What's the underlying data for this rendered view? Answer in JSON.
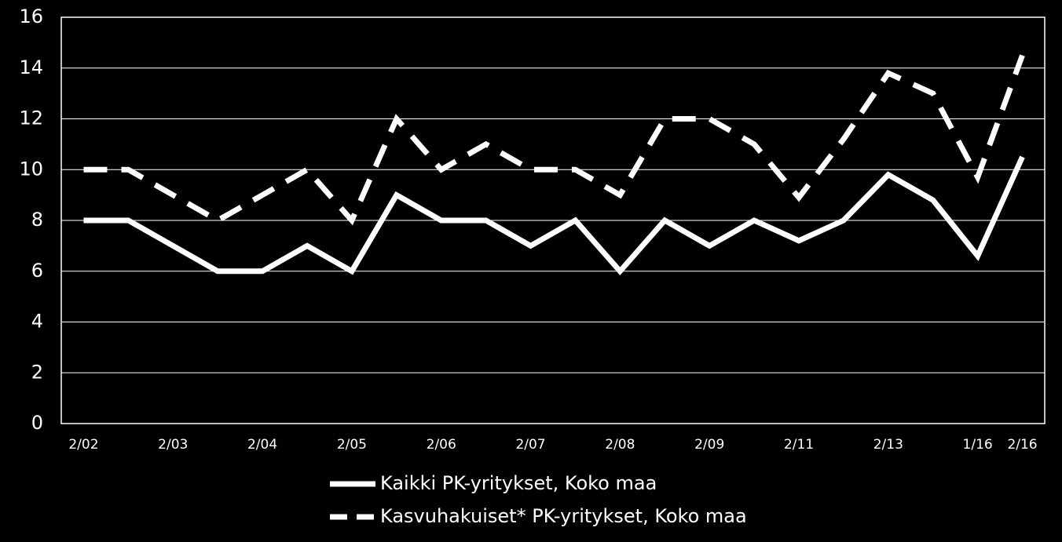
{
  "chart_data": {
    "type": "line",
    "categories": [
      "2/02",
      null,
      "2/03",
      null,
      "2/04",
      null,
      "2/05",
      null,
      "2/06",
      null,
      "2/07",
      null,
      "2/08",
      null,
      "2/09",
      null,
      "2/11",
      null,
      "2/13",
      null,
      "1/16",
      "2/16"
    ],
    "series": [
      {
        "name": "Kaikki PK-yritykset, Koko maa",
        "color": "#ffffff",
        "dash": "solid",
        "values": [
          8,
          8,
          7,
          6,
          6,
          7,
          6,
          9,
          8,
          8,
          7,
          8,
          6,
          8,
          7,
          8,
          7.2,
          8,
          9.8,
          8.8,
          6.6,
          10.5
        ]
      },
      {
        "name": "Kasvuhakuiset* PK-yritykset, Koko maa",
        "color": "#ffffff",
        "dash": "dashed",
        "values": [
          10,
          10,
          9,
          8,
          9,
          10,
          8,
          12,
          10,
          11,
          10,
          10,
          9,
          12,
          12,
          11,
          8.9,
          11.2,
          13.8,
          13,
          9.7,
          14.5
        ]
      }
    ],
    "ylim": [
      0,
      16
    ],
    "yticks": [
      0,
      2,
      4,
      6,
      8,
      10,
      12,
      14,
      16
    ],
    "grid": true,
    "legend": "bottom"
  }
}
